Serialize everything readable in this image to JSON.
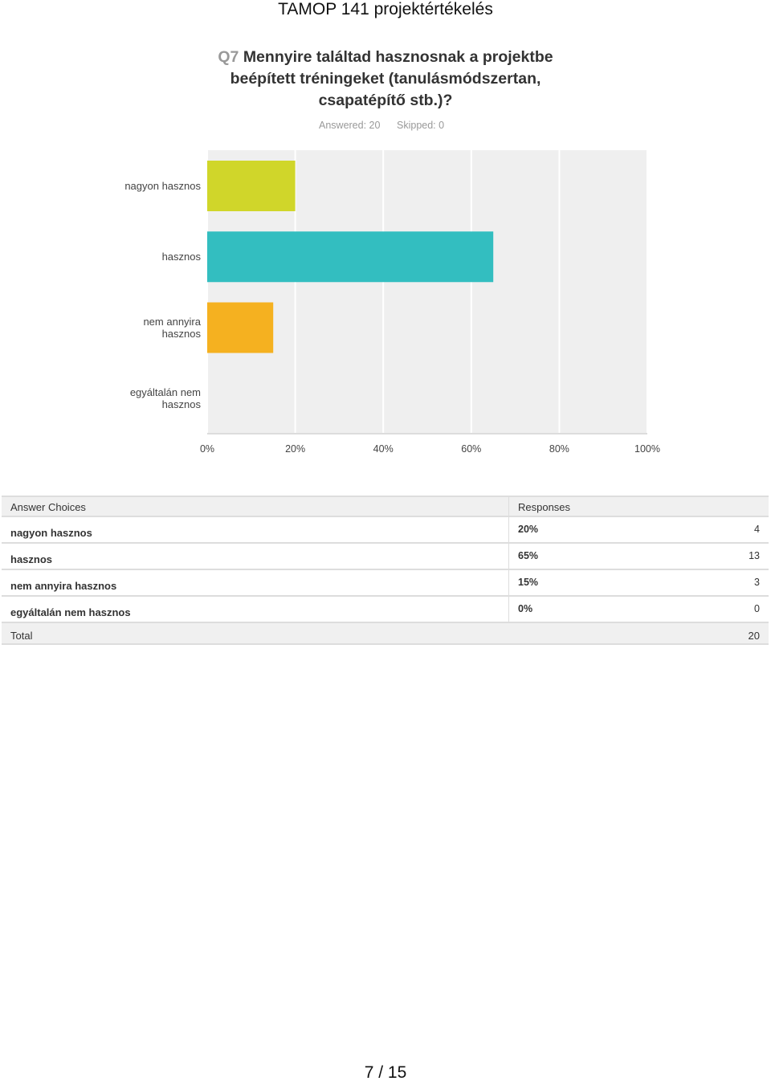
{
  "page_header": "TAMOP 141 projektértékelés",
  "chart_data": {
    "type": "hbar",
    "question_number": "Q7",
    "title": "Mennyire találtad hasznosnak a projektbe beépített tréningeket (tanulásmódszertan, csapatépítő stb.)?",
    "answered": "Answered: 20",
    "skipped": "Skipped: 0",
    "categories": [
      "nagyon hasznos",
      "hasznos",
      "nem annyira hasznos",
      "egyáltalán nem hasznos"
    ],
    "values": [
      20,
      65,
      15,
      0
    ],
    "colors": [
      "#d0d62a",
      "#33bec0",
      "#f5b120",
      "#7e9bd0"
    ],
    "xlim": [
      0,
      100
    ],
    "xticks": [
      {
        "value": 0,
        "label": "0%"
      },
      {
        "value": 20,
        "label": "20%"
      },
      {
        "value": 40,
        "label": "40%"
      },
      {
        "value": 60,
        "label": "60%"
      },
      {
        "value": 80,
        "label": "80%"
      },
      {
        "value": 100,
        "label": "100%"
      }
    ],
    "grid": true
  },
  "table": {
    "header": [
      "Answer Choices",
      "Responses"
    ],
    "rows": [
      [
        "nagyon hasznos",
        "20%",
        "4"
      ],
      [
        "hasznos",
        "65%",
        "13"
      ],
      [
        "nem annyira hasznos",
        "15%",
        "3"
      ],
      [
        "egyáltalán nem hasznos",
        "0%",
        "0"
      ]
    ],
    "total": [
      "Total",
      "20"
    ]
  },
  "footer": "7 / 15"
}
